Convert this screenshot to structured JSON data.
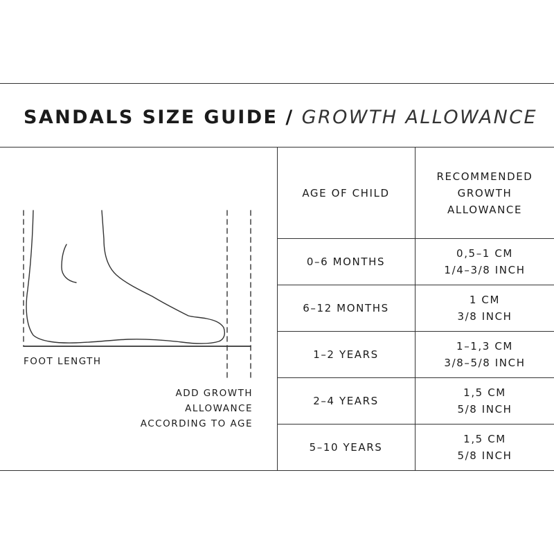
{
  "title": {
    "main": "SANDALS SIZE GUIDE",
    "separator": "/",
    "sub": "GROWTH ALLOWANCE"
  },
  "diagram": {
    "foot_length_label": "FOOT LENGTH",
    "growth_note_lines": [
      "ADD GROWTH",
      "ALLOWANCE",
      "ACCORDING TO AGE"
    ]
  },
  "table": {
    "headers": {
      "age": [
        "AGE OF CHILD"
      ],
      "allowance": [
        "RECOMMENDED",
        "GROWTH",
        "ALLOWANCE"
      ]
    },
    "rows": [
      {
        "age": "0–6 MONTHS",
        "cm": "0,5–1 CM",
        "inch": "1/4–3/8 INCH"
      },
      {
        "age": "6–12 MONTHS",
        "cm": "1 CM",
        "inch": "3/8 INCH"
      },
      {
        "age": "1–2 YEARS",
        "cm": "1–1,3 CM",
        "inch": "3/8–5/8 INCH"
      },
      {
        "age": "2–4 YEARS",
        "cm": "1,5 CM",
        "inch": "5/8 INCH"
      },
      {
        "age": "5–10 YEARS",
        "cm": "1,5 CM",
        "inch": "5/8 INCH"
      }
    ]
  }
}
